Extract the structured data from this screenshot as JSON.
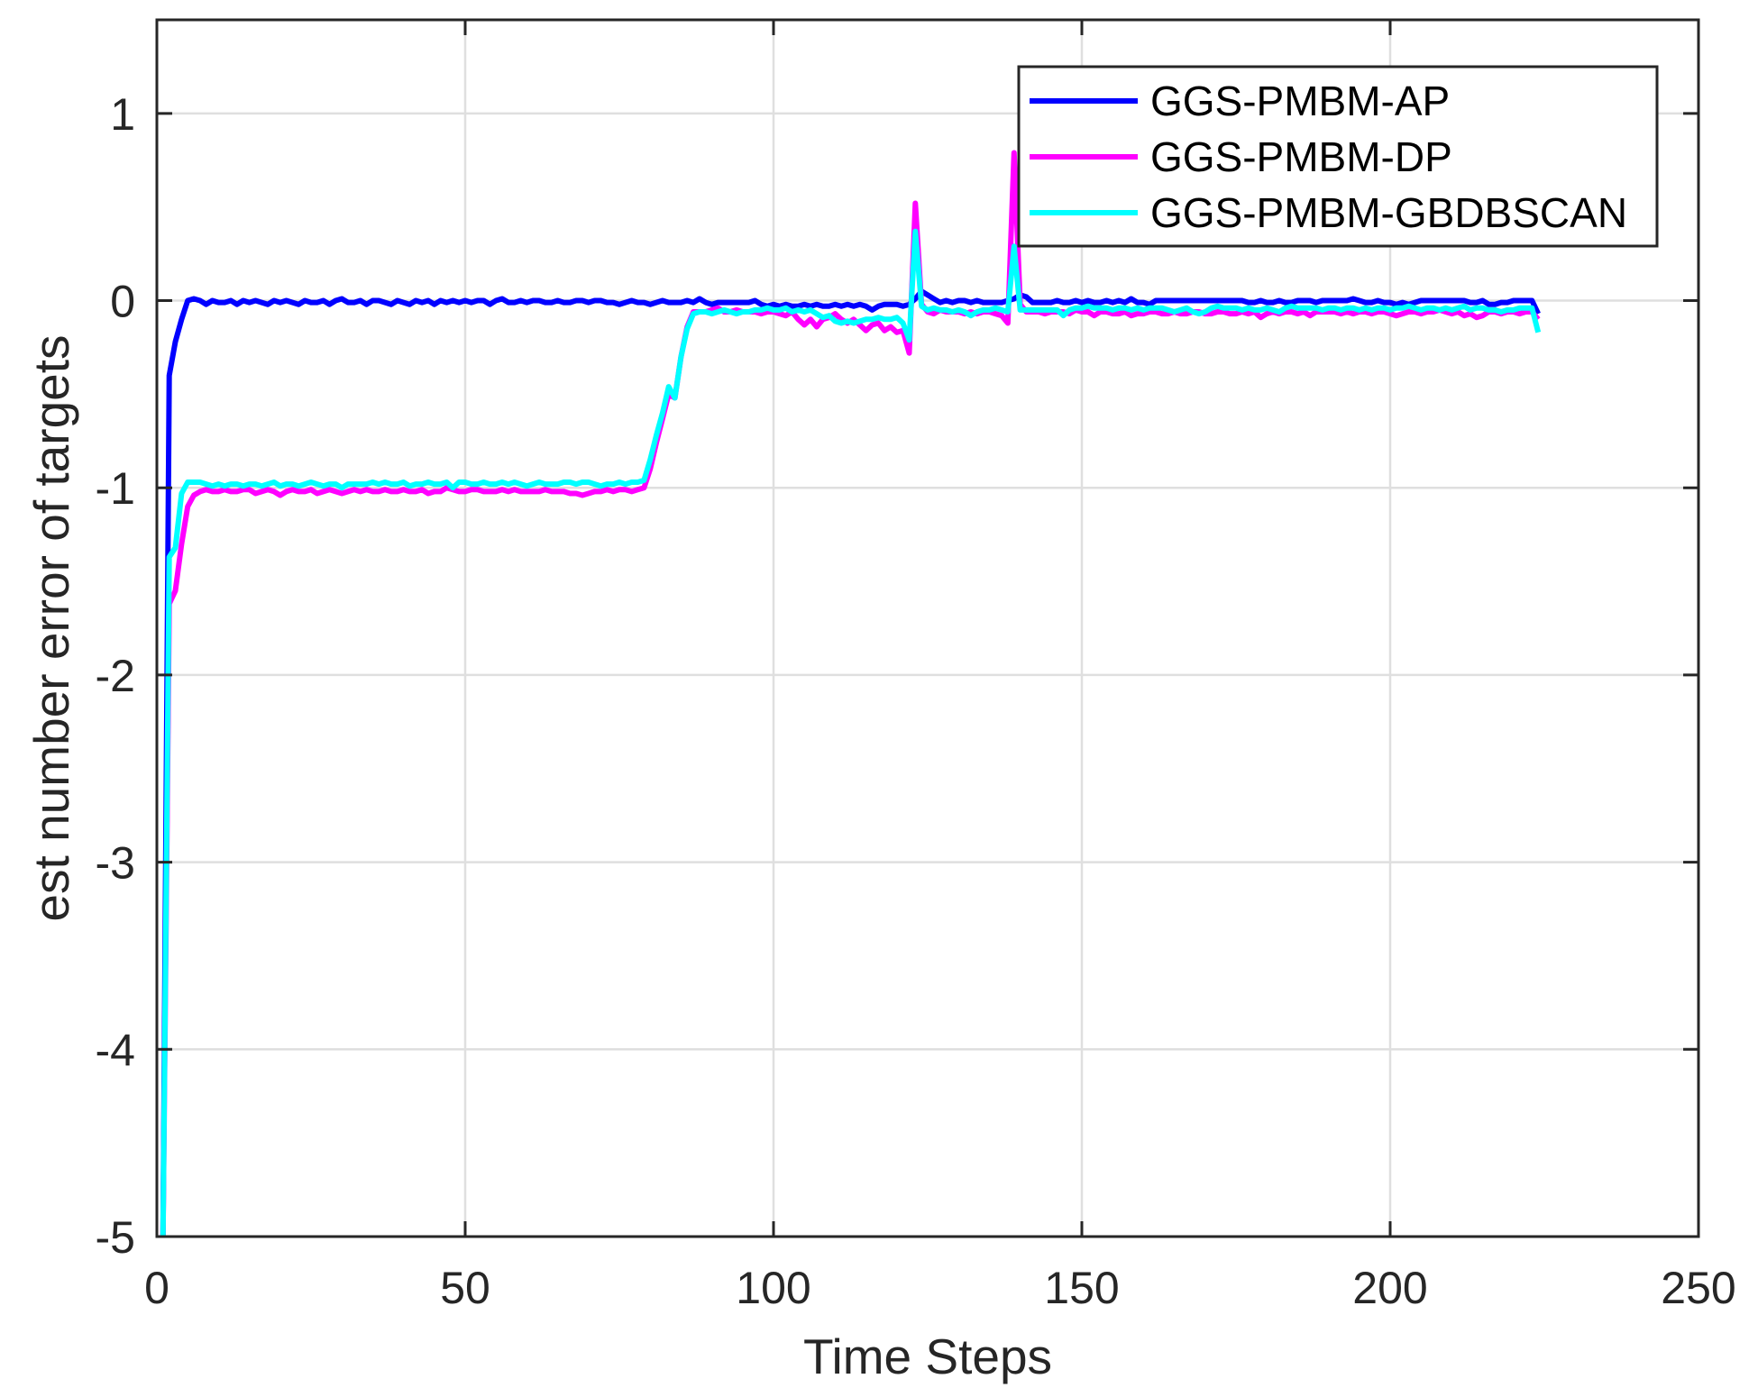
{
  "chart_data": {
    "type": "line",
    "title": "",
    "xlabel": "Time Steps",
    "ylabel": "est number error of targets",
    "xlim": [
      0,
      250
    ],
    "ylim": [
      -5,
      1.5
    ],
    "xticks": [
      0,
      50,
      100,
      150,
      200,
      250
    ],
    "yticks": [
      -5,
      -4,
      -3,
      -2,
      -1,
      0,
      1
    ],
    "xtick_labels": [
      "0",
      "50",
      "100",
      "150",
      "200",
      "250"
    ],
    "ytick_labels": [
      "-5",
      "-4",
      "-3",
      "-2",
      "-1",
      "0",
      "1"
    ],
    "grid": true,
    "legend_position": "upper right",
    "x_start": 1,
    "x_step": 1,
    "series": [
      {
        "name": "GGS-PMBM-AP",
        "color": "#0000ff",
        "values": [
          -5,
          -0.4,
          -0.22,
          -0.1,
          0,
          0.01,
          0,
          -0.02,
          0,
          -0.01,
          -0.01,
          0,
          -0.02,
          0,
          -0.01,
          0,
          -0.01,
          -0.02,
          0,
          -0.01,
          0,
          -0.01,
          -0.02,
          0,
          -0.01,
          -0.01,
          0,
          -0.02,
          0,
          0.01,
          -0.01,
          -0.01,
          0,
          -0.02,
          0,
          0,
          -0.01,
          -0.02,
          0,
          -0.01,
          -0.02,
          0,
          -0.01,
          0,
          -0.02,
          0,
          -0.01,
          0,
          -0.01,
          0,
          -0.01,
          0,
          0,
          -0.02,
          0,
          0.01,
          -0.01,
          -0.01,
          0,
          -0.01,
          0,
          0,
          -0.01,
          -0.01,
          0,
          -0.01,
          -0.01,
          0,
          0,
          -0.01,
          0,
          0,
          -0.01,
          -0.01,
          -0.02,
          -0.01,
          0,
          -0.01,
          -0.01,
          -0.02,
          -0.01,
          0,
          -0.01,
          -0.01,
          -0.01,
          0,
          -0.01,
          0.01,
          -0.01,
          -0.02,
          -0.01,
          -0.01,
          -0.01,
          -0.01,
          -0.01,
          -0.01,
          0,
          -0.02,
          -0.03,
          -0.02,
          -0.03,
          -0.02,
          -0.03,
          -0.03,
          -0.02,
          -0.03,
          -0.02,
          -0.03,
          -0.03,
          -0.02,
          -0.03,
          -0.02,
          -0.03,
          -0.02,
          -0.03,
          -0.05,
          -0.03,
          -0.02,
          -0.02,
          -0.02,
          -0.03,
          -0.02,
          0.01,
          0.05,
          0.03,
          0.01,
          -0.01,
          0,
          -0.01,
          0,
          0,
          -0.01,
          0,
          -0.01,
          -0.01,
          -0.01,
          -0.01,
          0,
          0.01,
          0.03,
          0.02,
          -0.01,
          -0.01,
          -0.01,
          -0.01,
          0,
          -0.01,
          -0.01,
          0,
          -0.01,
          0,
          -0.01,
          -0.01,
          0,
          -0.01,
          0,
          -0.01,
          0.01,
          -0.01,
          -0.01,
          -0.02,
          0,
          0,
          0,
          0,
          0,
          0,
          0,
          0,
          0,
          0,
          0,
          0,
          0,
          0,
          0,
          -0.01,
          -0.01,
          0,
          -0.01,
          -0.01,
          0,
          -0.01,
          -0.01,
          0,
          0,
          0,
          -0.01,
          0,
          0,
          0,
          0,
          0,
          0.01,
          0,
          -0.01,
          -0.01,
          0,
          -0.01,
          -0.01,
          -0.02,
          -0.01,
          -0.02,
          -0.01,
          0,
          0,
          0,
          0,
          0,
          0,
          0,
          0,
          -0.01,
          -0.01,
          0,
          -0.02,
          -0.02,
          -0.01,
          -0.01,
          0,
          0,
          0,
          0,
          -0.07
        ]
      },
      {
        "name": "GGS-PMBM-DP",
        "color": "#ff00ff",
        "values": [
          -5,
          -1.62,
          -1.55,
          -1.3,
          -1.1,
          -1.04,
          -1.02,
          -1.01,
          -1.02,
          -1.02,
          -1.01,
          -1.02,
          -1.02,
          -1.01,
          -1.01,
          -1.03,
          -1.02,
          -1.01,
          -1.02,
          -1.04,
          -1.02,
          -1.01,
          -1.02,
          -1.02,
          -1.01,
          -1.03,
          -1.02,
          -1.01,
          -1.02,
          -1.03,
          -1.02,
          -1.01,
          -1.02,
          -1.01,
          -1.02,
          -1.02,
          -1.01,
          -1.02,
          -1.02,
          -1.01,
          -1.02,
          -1.02,
          -1.01,
          -1.03,
          -1.02,
          -1.02,
          -1.0,
          -1.01,
          -1.02,
          -1.02,
          -1.01,
          -1.01,
          -1.02,
          -1.02,
          -1.02,
          -1.01,
          -1.02,
          -1.01,
          -1.02,
          -1.02,
          -1.02,
          -1.02,
          -1.01,
          -1.02,
          -1.02,
          -1.02,
          -1.03,
          -1.03,
          -1.04,
          -1.03,
          -1.02,
          -1.02,
          -1.01,
          -1.02,
          -1.01,
          -1.01,
          -1.02,
          -1.01,
          -1.0,
          -0.9,
          -0.76,
          -0.63,
          -0.5,
          -0.52,
          -0.3,
          -0.14,
          -0.06,
          -0.06,
          -0.06,
          -0.05,
          -0.04,
          -0.06,
          -0.06,
          -0.05,
          -0.06,
          -0.06,
          -0.06,
          -0.07,
          -0.06,
          -0.06,
          -0.07,
          -0.08,
          -0.06,
          -0.1,
          -0.13,
          -0.1,
          -0.14,
          -0.1,
          -0.09,
          -0.07,
          -0.1,
          -0.12,
          -0.1,
          -0.13,
          -0.16,
          -0.13,
          -0.12,
          -0.16,
          -0.14,
          -0.17,
          -0.16,
          -0.28,
          0.52,
          -0.02,
          -0.06,
          -0.07,
          -0.05,
          -0.06,
          -0.06,
          -0.06,
          -0.07,
          -0.06,
          -0.07,
          -0.06,
          -0.06,
          -0.07,
          -0.08,
          -0.12,
          0.79,
          -0.02,
          -0.06,
          -0.06,
          -0.06,
          -0.07,
          -0.06,
          -0.06,
          -0.06,
          -0.07,
          -0.05,
          -0.06,
          -0.06,
          -0.08,
          -0.06,
          -0.06,
          -0.07,
          -0.07,
          -0.06,
          -0.08,
          -0.07,
          -0.07,
          -0.06,
          -0.06,
          -0.07,
          -0.07,
          -0.06,
          -0.07,
          -0.07,
          -0.06,
          -0.06,
          -0.07,
          -0.07,
          -0.06,
          -0.06,
          -0.07,
          -0.07,
          -0.06,
          -0.07,
          -0.06,
          -0.09,
          -0.07,
          -0.06,
          -0.07,
          -0.06,
          -0.06,
          -0.07,
          -0.06,
          -0.08,
          -0.06,
          -0.06,
          -0.06,
          -0.06,
          -0.07,
          -0.06,
          -0.07,
          -0.06,
          -0.06,
          -0.07,
          -0.06,
          -0.06,
          -0.07,
          -0.08,
          -0.07,
          -0.06,
          -0.06,
          -0.07,
          -0.06,
          -0.06,
          -0.05,
          -0.06,
          -0.07,
          -0.06,
          -0.08,
          -0.07,
          -0.09,
          -0.08,
          -0.06,
          -0.06,
          -0.07,
          -0.06,
          -0.06,
          -0.07,
          -0.06,
          -0.06,
          -0.1
        ]
      },
      {
        "name": "GGS-PMBM-GBDBSCAN",
        "color": "#00ffff",
        "values": [
          -5,
          -1.37,
          -1.32,
          -1.03,
          -0.97,
          -0.97,
          -0.97,
          -0.98,
          -0.99,
          -0.98,
          -0.99,
          -0.98,
          -0.98,
          -0.99,
          -0.98,
          -0.98,
          -0.99,
          -0.98,
          -0.97,
          -0.99,
          -0.98,
          -0.98,
          -0.99,
          -0.98,
          -0.97,
          -0.98,
          -0.99,
          -0.98,
          -0.98,
          -1.0,
          -0.98,
          -0.98,
          -0.98,
          -0.98,
          -0.97,
          -0.98,
          -0.97,
          -0.98,
          -0.98,
          -0.97,
          -0.99,
          -0.98,
          -0.98,
          -0.97,
          -0.98,
          -0.98,
          -0.97,
          -1.0,
          -0.97,
          -0.97,
          -0.98,
          -0.98,
          -0.97,
          -0.98,
          -0.98,
          -0.97,
          -0.98,
          -0.97,
          -0.98,
          -0.99,
          -0.98,
          -0.97,
          -0.98,
          -0.98,
          -0.98,
          -0.97,
          -0.97,
          -0.98,
          -0.97,
          -0.97,
          -0.98,
          -0.99,
          -0.98,
          -0.98,
          -0.97,
          -0.98,
          -0.97,
          -0.97,
          -0.96,
          -0.85,
          -0.72,
          -0.6,
          -0.46,
          -0.52,
          -0.3,
          -0.15,
          -0.07,
          -0.06,
          -0.06,
          -0.07,
          -0.06,
          -0.05,
          -0.06,
          -0.07,
          -0.06,
          -0.06,
          -0.05,
          -0.05,
          -0.04,
          -0.05,
          -0.05,
          -0.04,
          -0.06,
          -0.05,
          -0.06,
          -0.05,
          -0.07,
          -0.09,
          -0.08,
          -0.11,
          -0.12,
          -0.11,
          -0.12,
          -0.11,
          -0.1,
          -0.1,
          -0.09,
          -0.1,
          -0.1,
          -0.09,
          -0.12,
          -0.21,
          0.37,
          -0.03,
          -0.05,
          -0.04,
          -0.05,
          -0.05,
          -0.06,
          -0.05,
          -0.06,
          -0.08,
          -0.06,
          -0.05,
          -0.05,
          -0.04,
          -0.05,
          -0.06,
          0.29,
          -0.05,
          -0.05,
          -0.05,
          -0.05,
          -0.05,
          -0.05,
          -0.05,
          -0.08,
          -0.05,
          -0.04,
          -0.04,
          -0.03,
          -0.04,
          -0.04,
          -0.04,
          -0.05,
          -0.04,
          -0.04,
          -0.05,
          -0.04,
          -0.05,
          -0.04,
          -0.04,
          -0.04,
          -0.05,
          -0.06,
          -0.05,
          -0.04,
          -0.06,
          -0.07,
          -0.06,
          -0.04,
          -0.03,
          -0.04,
          -0.04,
          -0.04,
          -0.05,
          -0.04,
          -0.05,
          -0.05,
          -0.04,
          -0.05,
          -0.06,
          -0.04,
          -0.03,
          -0.04,
          -0.04,
          -0.04,
          -0.04,
          -0.05,
          -0.04,
          -0.04,
          -0.05,
          -0.04,
          -0.04,
          -0.05,
          -0.04,
          -0.05,
          -0.04,
          -0.04,
          -0.05,
          -0.04,
          -0.04,
          -0.03,
          -0.04,
          -0.05,
          -0.04,
          -0.04,
          -0.05,
          -0.04,
          -0.05,
          -0.04,
          -0.03,
          -0.05,
          -0.04,
          -0.04,
          -0.05,
          -0.05,
          -0.06,
          -0.05,
          -0.05,
          -0.04,
          -0.04,
          -0.04,
          -0.17
        ]
      }
    ]
  },
  "style": {
    "axis_color": "#262626",
    "grid_color": "#dfdfdf",
    "background": "#ffffff"
  }
}
